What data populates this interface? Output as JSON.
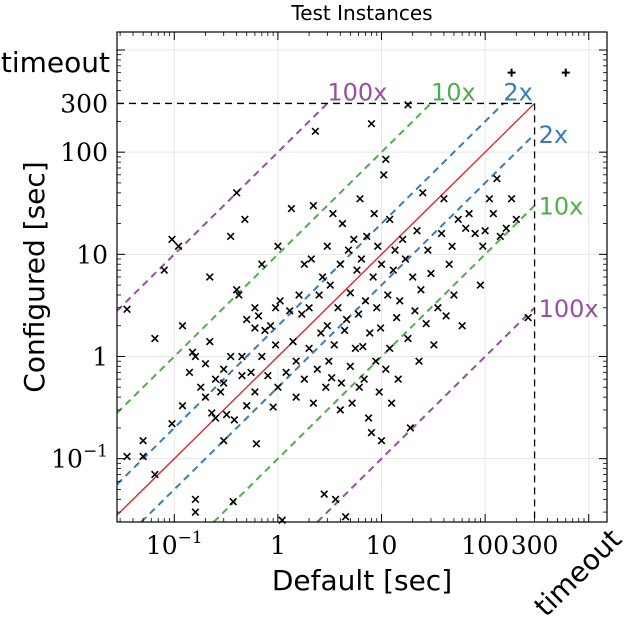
{
  "chart_data": {
    "type": "scatter",
    "title": "Test Instances",
    "xlabel": "Default [sec]",
    "ylabel": "Configured [sec]",
    "scale": "log",
    "xlim": [
      0.028,
      1500
    ],
    "ylim": [
      0.024,
      1500
    ],
    "cutoff": 300,
    "timeout_value": 600,
    "timeout_label": "timeout",
    "x_ticks": [
      {
        "value": 0.1,
        "base": "10",
        "exp": "−1"
      },
      {
        "value": 1,
        "label": "1"
      },
      {
        "value": 10,
        "label": "10"
      },
      {
        "value": 100,
        "label": "100"
      },
      {
        "value": 300,
        "label": "300"
      }
    ],
    "y_ticks": [
      {
        "value": 0.1,
        "base": "10",
        "exp": "−1"
      },
      {
        "value": 1,
        "label": "1"
      },
      {
        "value": 10,
        "label": "10"
      },
      {
        "value": 100,
        "label": "100"
      },
      {
        "value": 300,
        "label": "300"
      }
    ],
    "reference_lines": [
      {
        "label": "100x",
        "factor": 100,
        "color": "#984ea3"
      },
      {
        "label": "10x",
        "factor": 10,
        "color": "#4daf4a"
      },
      {
        "label": "2x",
        "factor": 2,
        "color": "#377eb8"
      },
      {
        "label": "2x",
        "factor": 0.5,
        "color": "#377eb8"
      },
      {
        "label": "10x",
        "factor": 0.1,
        "color": "#4daf4a"
      },
      {
        "label": "100x",
        "factor": 0.01,
        "color": "#984ea3"
      }
    ],
    "diagonal_color": "#e41a1c",
    "timeout_points": [
      {
        "x": 180,
        "y": 600
      },
      {
        "x": 600,
        "y": 600
      }
    ],
    "points": [
      [
        0.035,
        2.9
      ],
      [
        0.035,
        0.105
      ],
      [
        0.05,
        0.105
      ],
      [
        0.05,
        0.15
      ],
      [
        0.065,
        1.5
      ],
      [
        0.065,
        0.07
      ],
      [
        0.08,
        7
      ],
      [
        0.095,
        14
      ],
      [
        0.095,
        0.22
      ],
      [
        0.11,
        12
      ],
      [
        0.12,
        2
      ],
      [
        0.12,
        0.33
      ],
      [
        0.14,
        0.7
      ],
      [
        0.15,
        1.1
      ],
      [
        0.16,
        1
      ],
      [
        0.16,
        0.04
      ],
      [
        0.16,
        0.03
      ],
      [
        0.18,
        0.5
      ],
      [
        0.2,
        0.85
      ],
      [
        0.2,
        0.4
      ],
      [
        0.22,
        6
      ],
      [
        0.22,
        1.4
      ],
      [
        0.23,
        0.28
      ],
      [
        0.25,
        0.25
      ],
      [
        0.25,
        0.6
      ],
      [
        0.28,
        0.45
      ],
      [
        0.3,
        0.55
      ],
      [
        0.3,
        0.75
      ],
      [
        0.3,
        0.15
      ],
      [
        0.32,
        0.27
      ],
      [
        0.35,
        15
      ],
      [
        0.35,
        1
      ],
      [
        0.37,
        0.038
      ],
      [
        0.38,
        0.24
      ],
      [
        0.4,
        40
      ],
      [
        0.4,
        4.5
      ],
      [
        0.42,
        4
      ],
      [
        0.45,
        0.65
      ],
      [
        0.45,
        1
      ],
      [
        0.48,
        22
      ],
      [
        0.5,
        2.3
      ],
      [
        0.5,
        0.33
      ],
      [
        0.55,
        0.7
      ],
      [
        0.6,
        1.9
      ],
      [
        0.6,
        3
      ],
      [
        0.6,
        0.45
      ],
      [
        0.62,
        0.14
      ],
      [
        0.65,
        2.5
      ],
      [
        0.7,
        8
      ],
      [
        0.7,
        1
      ],
      [
        0.75,
        1.8
      ],
      [
        0.8,
        0.65
      ],
      [
        0.85,
        2
      ],
      [
        0.9,
        0.32
      ],
      [
        0.95,
        3
      ],
      [
        0.95,
        1.3
      ],
      [
        1,
        12
      ],
      [
        1,
        0.5
      ],
      [
        1.05,
        3.5
      ],
      [
        1.1,
        0.025
      ],
      [
        1.2,
        0.7
      ],
      [
        1.3,
        2.8
      ],
      [
        1.35,
        28
      ],
      [
        1.4,
        1.4
      ],
      [
        1.5,
        0.9
      ],
      [
        1.5,
        0.4
      ],
      [
        1.6,
        4
      ],
      [
        1.7,
        2.6
      ],
      [
        1.8,
        8
      ],
      [
        1.8,
        0.6
      ],
      [
        2,
        3
      ],
      [
        2,
        1.2
      ],
      [
        2.1,
        9
      ],
      [
        2.2,
        0.35
      ],
      [
        2.2,
        30
      ],
      [
        2.3,
        160
      ],
      [
        2.4,
        0.75
      ],
      [
        2.5,
        4
      ],
      [
        2.6,
        1.7
      ],
      [
        2.7,
        6
      ],
      [
        2.8,
        0.045
      ],
      [
        2.9,
        0.5
      ],
      [
        3,
        12
      ],
      [
        3,
        2
      ],
      [
        3.1,
        0.9
      ],
      [
        3.2,
        5
      ],
      [
        3.3,
        0.62
      ],
      [
        3.4,
        25
      ],
      [
        3.5,
        1.3
      ],
      [
        3.6,
        0.04
      ],
      [
        3.8,
        3
      ],
      [
        4,
        8
      ],
      [
        4,
        0.3
      ],
      [
        4.1,
        0.55
      ],
      [
        4.2,
        20
      ],
      [
        4.4,
        1.8
      ],
      [
        4.5,
        0.027
      ],
      [
        4.6,
        2.3
      ],
      [
        4.8,
        11
      ],
      [
        5,
        0.8
      ],
      [
        5,
        4.2
      ],
      [
        5.2,
        0.35
      ],
      [
        5.4,
        14
      ],
      [
        5.6,
        1.2
      ],
      [
        5.8,
        7
      ],
      [
        6,
        2.6
      ],
      [
        6.1,
        0.5
      ],
      [
        6.2,
        35
      ],
      [
        6.4,
        9
      ],
      [
        6.6,
        1.25
      ],
      [
        6.8,
        0.6
      ],
      [
        7,
        3.5
      ],
      [
        7.2,
        15
      ],
      [
        7.5,
        0.25
      ],
      [
        7.7,
        1.7
      ],
      [
        8,
        190
      ],
      [
        8,
        0.18
      ],
      [
        8.3,
        6
      ],
      [
        8.5,
        25
      ],
      [
        8.8,
        0.9
      ],
      [
        9,
        3
      ],
      [
        9.2,
        12
      ],
      [
        9.5,
        0.45
      ],
      [
        9.8,
        1.9
      ],
      [
        10,
        8
      ],
      [
        10,
        0.15
      ],
      [
        10.5,
        60
      ],
      [
        11,
        0.75
      ],
      [
        11,
        85
      ],
      [
        11.5,
        4
      ],
      [
        12,
        22
      ],
      [
        12,
        1.2
      ],
      [
        12.5,
        0.35
      ],
      [
        13,
        7
      ],
      [
        13.5,
        11
      ],
      [
        14,
        2.4
      ],
      [
        14.5,
        0.6
      ],
      [
        15,
        3.5
      ],
      [
        16,
        14
      ],
      [
        17,
        9
      ],
      [
        18,
        290
      ],
      [
        18,
        1.5
      ],
      [
        19,
        0.2
      ],
      [
        20,
        6
      ],
      [
        21,
        2.8
      ],
      [
        22,
        17
      ],
      [
        23,
        0.9
      ],
      [
        24,
        4.5
      ],
      [
        25,
        40
      ],
      [
        27,
        2.1
      ],
      [
        28,
        11
      ],
      [
        30,
        6.5
      ],
      [
        32,
        1.3
      ],
      [
        35,
        3
      ],
      [
        38,
        16
      ],
      [
        40,
        35
      ],
      [
        42,
        2.5
      ],
      [
        45,
        8
      ],
      [
        48,
        12
      ],
      [
        50,
        4
      ],
      [
        55,
        22
      ],
      [
        60,
        2
      ],
      [
        65,
        18
      ],
      [
        70,
        25
      ],
      [
        80,
        16
      ],
      [
        90,
        5
      ],
      [
        95,
        12
      ],
      [
        100,
        17
      ],
      [
        110,
        35
      ],
      [
        120,
        25
      ],
      [
        130,
        55
      ],
      [
        140,
        15
      ],
      [
        160,
        18
      ],
      [
        180,
        35
      ],
      [
        200,
        22
      ],
      [
        260,
        2.4
      ]
    ]
  }
}
